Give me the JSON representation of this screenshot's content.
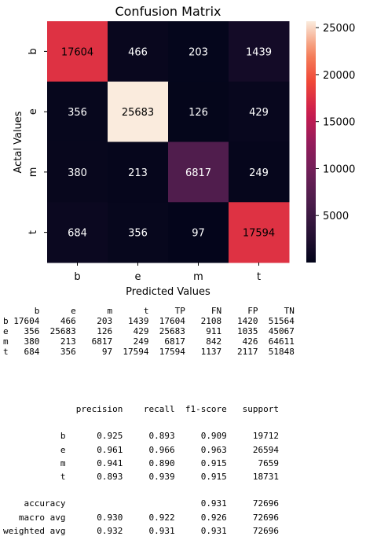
{
  "chart_data": {
    "type": "heatmap",
    "title": "Confusion Matrix",
    "xlabel": "Predicted Values",
    "ylabel": "Actal Values",
    "x_categories": [
      "b",
      "e",
      "m",
      "t"
    ],
    "y_categories": [
      "b",
      "e",
      "m",
      "t"
    ],
    "values": [
      [
        17604,
        466,
        203,
        1439
      ],
      [
        356,
        25683,
        126,
        429
      ],
      [
        380,
        213,
        6817,
        249
      ],
      [
        684,
        356,
        97,
        17594
      ]
    ],
    "vmin": 0,
    "vmax": 25683,
    "colormap": "rocket",
    "colorbar": {
      "ticks": [
        5000,
        10000,
        15000,
        20000,
        25000
      ],
      "tick_labels": [
        "5000",
        "10000",
        "15000",
        "20000",
        "25000"
      ],
      "placement": "right"
    },
    "grid": false
  },
  "stats_table": {
    "columns": [
      "b",
      "e",
      "m",
      "t",
      "TP",
      "FN",
      "FP",
      "TN"
    ],
    "rows": [
      {
        "label": "b",
        "values": [
          "17604",
          "466",
          "203",
          "1439",
          "17604",
          "2108",
          "1420",
          "51564"
        ]
      },
      {
        "label": "e",
        "values": [
          "356",
          "25683",
          "126",
          "429",
          "25683",
          "911",
          "1035",
          "45067"
        ]
      },
      {
        "label": "m",
        "values": [
          "380",
          "213",
          "6817",
          "249",
          "6817",
          "842",
          "426",
          "64611"
        ]
      },
      {
        "label": "t",
        "values": [
          "684",
          "356",
          "97",
          "17594",
          "17594",
          "1137",
          "2117",
          "51848"
        ]
      }
    ]
  },
  "classification_report": {
    "columns": [
      "precision",
      "recall",
      "f1-score",
      "support"
    ],
    "rows": [
      {
        "label": "b",
        "values": [
          "0.925",
          "0.893",
          "0.909",
          "19712"
        ]
      },
      {
        "label": "e",
        "values": [
          "0.961",
          "0.966",
          "0.963",
          "26594"
        ]
      },
      {
        "label": "m",
        "values": [
          "0.941",
          "0.890",
          "0.915",
          "7659"
        ]
      },
      {
        "label": "t",
        "values": [
          "0.893",
          "0.939",
          "0.915",
          "18731"
        ]
      }
    ],
    "summary": [
      {
        "label": "accuracy",
        "values": [
          "",
          "",
          "0.931",
          "72696"
        ]
      },
      {
        "label": "macro avg",
        "values": [
          "0.930",
          "0.922",
          "0.926",
          "72696"
        ]
      },
      {
        "label": "weighted avg",
        "values": [
          "0.932",
          "0.931",
          "0.931",
          "72696"
        ]
      }
    ]
  }
}
